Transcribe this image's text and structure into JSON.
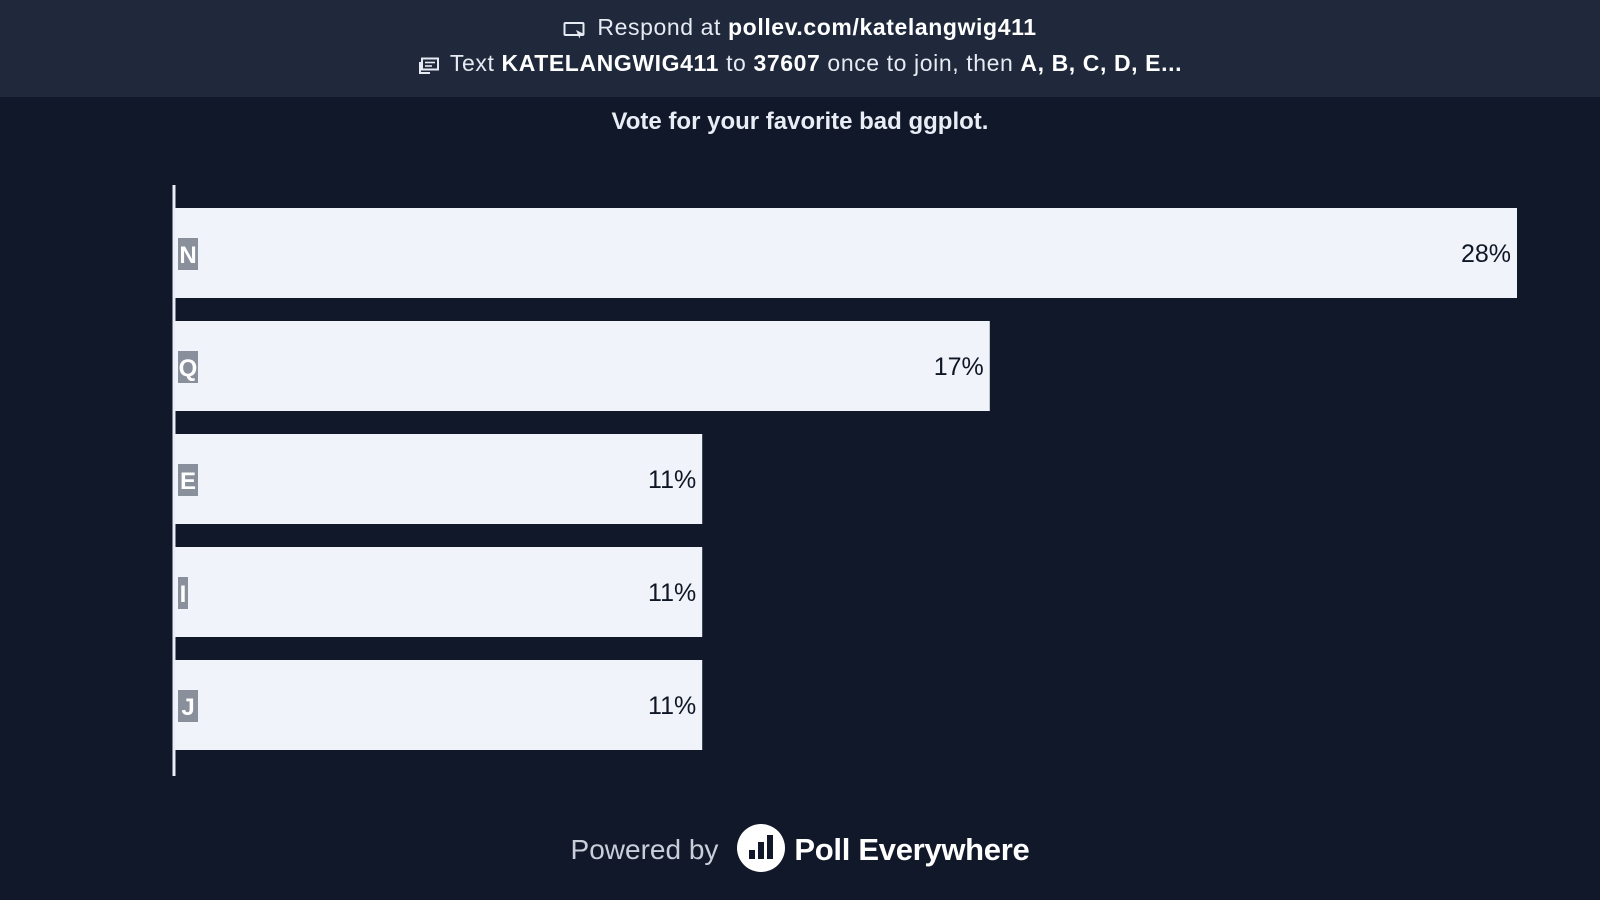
{
  "header": {
    "respond_prefix": "Respond at",
    "respond_url": "pollev.com/katelangwig411",
    "text_prefix": "Text",
    "text_code": "KATELANGWIG411",
    "text_to": "to",
    "text_number": "37607",
    "text_middle": "once to join, then",
    "text_options": "A, B, C, D, E..."
  },
  "question": "Vote for your favorite bad ggplot.",
  "chart_data": {
    "type": "bar",
    "orientation": "horizontal",
    "categories": [
      "N",
      "Q",
      "E",
      "I",
      "J"
    ],
    "values": [
      28,
      17,
      11,
      11,
      11
    ],
    "value_labels": [
      "28%",
      "17%",
      "11%",
      "11%",
      "11%"
    ],
    "unit": "%",
    "grid": false
  },
  "footer": {
    "powered_by": "Powered by",
    "brand": "Poll Everywhere"
  },
  "colors": {
    "background": "#10182a",
    "header_bg": "#1f293b",
    "bar": "#f0f3f9",
    "bar_text": "#0f1726",
    "badge": "#8a8f9c",
    "badge_text": "#ffffff",
    "axis": "#e9edf5"
  },
  "icons": {
    "respond": "screen-cursor-icon",
    "text": "message-icon",
    "brand": "poll-everywhere-logo-icon"
  }
}
